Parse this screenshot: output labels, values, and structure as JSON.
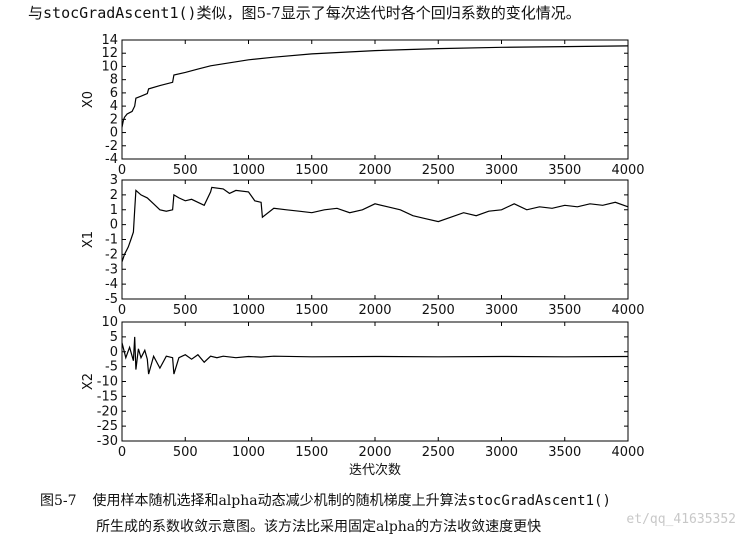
{
  "top_text": {
    "prefix": "与",
    "code": "stocGradAscent1()",
    "suffix": "类似，图5-7显示了每次迭代时各个回归系数的变化情况。"
  },
  "caption": {
    "number": "图5-7",
    "line1_prefix": "使用样本随机选择和alpha动态减少机制的随机梯度上升算法",
    "line1_code": "stocGradAscent1()",
    "line2": "所生成的系数收敛示意图。该方法比采用固定alpha的方法收敛速度更快"
  },
  "watermark": "et/qq_41635352",
  "chart_data": [
    {
      "type": "line",
      "ylabel": "X0",
      "xlim": [
        0,
        4000
      ],
      "ylim": [
        -4,
        14
      ],
      "yticks": [
        -4,
        -2,
        0,
        2,
        4,
        6,
        8,
        10,
        12,
        14
      ],
      "xticks": [
        0,
        500,
        1000,
        1500,
        2000,
        2500,
        3000,
        3500,
        4000
      ],
      "series": [
        {
          "x": [
            0,
            10,
            20,
            40,
            60,
            80,
            100,
            110,
            150,
            200,
            210,
            300,
            400,
            410,
            500,
            600,
            700,
            800,
            900,
            1000,
            1200,
            1500,
            2000,
            2500,
            3000,
            3500,
            4000
          ],
          "values": [
            0.8,
            1.8,
            2.3,
            2.8,
            3.0,
            3.2,
            4.0,
            5.2,
            5.5,
            5.9,
            6.6,
            7.1,
            7.6,
            8.7,
            9.1,
            9.6,
            10.1,
            10.4,
            10.7,
            11.0,
            11.4,
            11.9,
            12.4,
            12.7,
            12.9,
            13.0,
            13.1
          ]
        }
      ]
    },
    {
      "type": "line",
      "ylabel": "X1",
      "xlim": [
        0,
        4000
      ],
      "ylim": [
        -5,
        3
      ],
      "yticks": [
        -5,
        -4,
        -3,
        -2,
        -1,
        0,
        1,
        2,
        3
      ],
      "xticks": [
        0,
        500,
        1000,
        1500,
        2000,
        2500,
        3000,
        3500,
        4000
      ],
      "series": [
        {
          "x": [
            0,
            20,
            50,
            70,
            90,
            100,
            110,
            150,
            200,
            250,
            300,
            350,
            400,
            410,
            450,
            500,
            550,
            600,
            650,
            700,
            710,
            800,
            850,
            900,
            1000,
            1050,
            1100,
            1110,
            1200,
            1300,
            1400,
            1500,
            1600,
            1700,
            1800,
            1900,
            2000,
            2100,
            2200,
            2300,
            2400,
            2500,
            2600,
            2700,
            2800,
            2900,
            3000,
            3100,
            3200,
            3300,
            3400,
            3500,
            3600,
            3700,
            3800,
            3900,
            4000
          ],
          "values": [
            -2.5,
            -2.0,
            -1.5,
            -1.0,
            -0.5,
            1.0,
            2.3,
            2.0,
            1.8,
            1.4,
            1.0,
            0.9,
            1.0,
            2.0,
            1.8,
            1.6,
            1.7,
            1.5,
            1.3,
            2.2,
            2.5,
            2.4,
            2.1,
            2.3,
            2.2,
            1.6,
            1.5,
            0.5,
            1.1,
            1.0,
            0.9,
            0.8,
            1.0,
            1.1,
            0.8,
            1.0,
            1.4,
            1.2,
            1.0,
            0.6,
            0.4,
            0.2,
            0.5,
            0.8,
            0.6,
            0.9,
            1.0,
            1.4,
            1.0,
            1.2,
            1.1,
            1.3,
            1.2,
            1.4,
            1.3,
            1.5,
            1.2
          ]
        }
      ]
    },
    {
      "type": "line",
      "ylabel": "X2",
      "xlim": [
        0,
        4000
      ],
      "ylim": [
        -30,
        10
      ],
      "yticks": [
        -30,
        -25,
        -20,
        -15,
        -10,
        -5,
        0,
        5,
        10
      ],
      "xticks": [
        0,
        500,
        1000,
        1500,
        2000,
        2500,
        3000,
        3500,
        4000
      ],
      "xlabel": "迭代次数",
      "series": [
        {
          "x": [
            0,
            30,
            60,
            90,
            100,
            110,
            130,
            150,
            180,
            200,
            210,
            250,
            300,
            350,
            400,
            410,
            450,
            500,
            550,
            600,
            650,
            700,
            750,
            800,
            900,
            1000,
            1100,
            1200,
            1500,
            2000,
            2500,
            3000,
            3500,
            4000
          ],
          "values": [
            3.0,
            -2.0,
            1.5,
            -3.0,
            5.0,
            -6.0,
            1.0,
            -2.0,
            0.5,
            -2.5,
            -7.5,
            -1.5,
            -5.5,
            -1.5,
            -2.0,
            -7.5,
            -2.0,
            -1.0,
            -2.5,
            -1.0,
            -3.5,
            -1.5,
            -2.0,
            -1.5,
            -2.0,
            -1.6,
            -1.8,
            -1.5,
            -1.7,
            -1.6,
            -1.7,
            -1.6,
            -1.7,
            -1.6
          ]
        }
      ]
    }
  ]
}
